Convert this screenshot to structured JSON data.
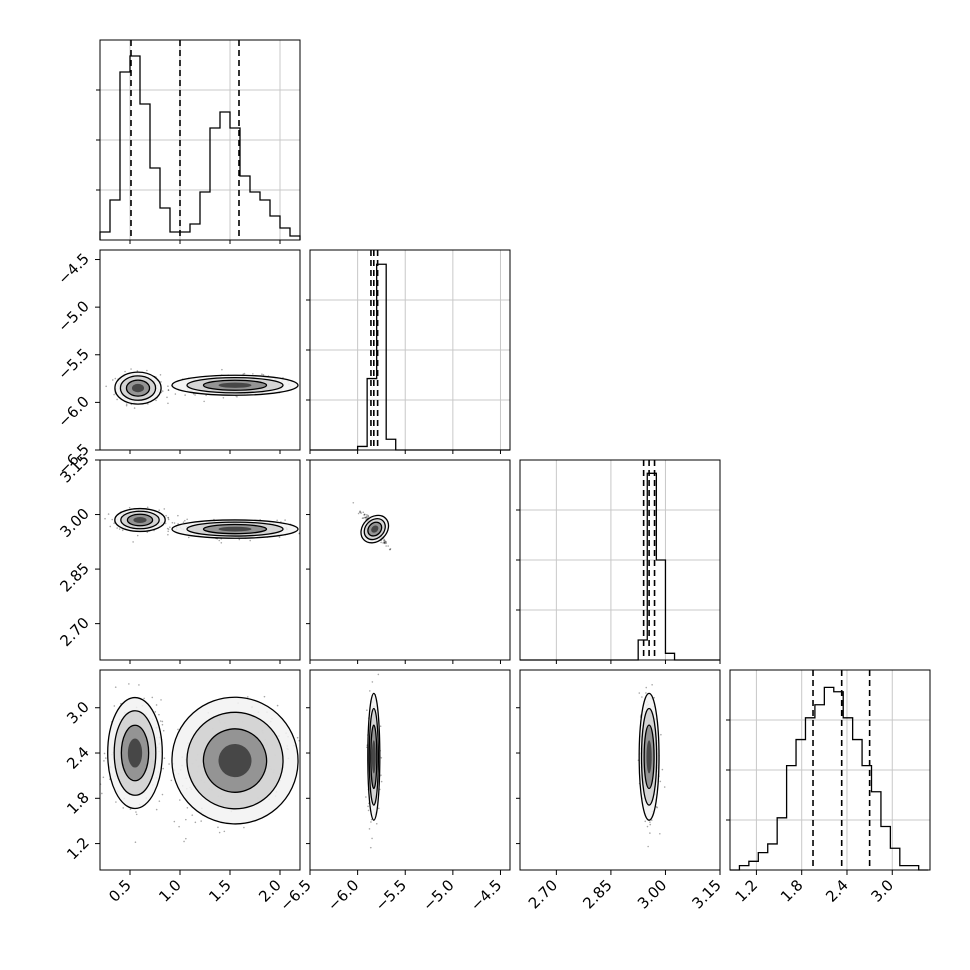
{
  "chart_data": {
    "type": "corner",
    "params": [
      {
        "id": "p0",
        "range": [
          0.2,
          2.2
        ],
        "ticks": [
          0.5,
          1.0,
          1.5,
          2.0
        ],
        "tick_labels": [
          "0.5",
          "1.0",
          "1.5",
          "2.0"
        ]
      },
      {
        "id": "p1",
        "range": [
          -6.5,
          -4.4
        ],
        "ticks": [
          -6.5,
          -6.0,
          -5.5,
          -5.0,
          -4.5
        ],
        "tick_labels": [
          "−6.5",
          "−6.0",
          "−5.5",
          "−5.0",
          "−4.5"
        ]
      },
      {
        "id": "p2",
        "range": [
          2.6,
          3.15
        ],
        "ticks": [
          2.7,
          2.85,
          3.0,
          3.15
        ],
        "tick_labels": [
          "2.70",
          "2.85",
          "3.00",
          "3.15"
        ]
      },
      {
        "id": "p3",
        "range": [
          0.85,
          3.5
        ],
        "ticks": [
          1.2,
          1.8,
          2.4,
          3.0
        ],
        "tick_labels": [
          "1.2",
          "1.8",
          "2.4",
          "3.0"
        ]
      }
    ],
    "histograms": [
      {
        "param": 0,
        "bins": [
          0.2,
          0.3,
          0.4,
          0.5,
          0.6,
          0.7,
          0.8,
          0.9,
          1.0,
          1.1,
          1.2,
          1.3,
          1.4,
          1.5,
          1.6,
          1.7,
          1.8,
          1.9,
          2.0,
          2.1,
          2.2
        ],
        "counts": [
          2,
          10,
          42,
          46,
          34,
          18,
          8,
          2,
          2,
          4,
          12,
          28,
          32,
          28,
          16,
          12,
          10,
          6,
          3,
          1
        ],
        "quantiles": [
          0.51,
          1.0,
          1.59
        ],
        "ymax": 50
      },
      {
        "param": 1,
        "bins": [
          -6.5,
          -6.4,
          -6.3,
          -6.2,
          -6.1,
          -6.0,
          -5.9,
          -5.8,
          -5.7,
          -5.6,
          -5.5,
          -5.4,
          -5.3,
          -5.2,
          -5.1,
          -5.0,
          -4.9,
          -4.8,
          -4.7,
          -4.6,
          -4.5,
          -4.4
        ],
        "counts": [
          0,
          0,
          0,
          0,
          0,
          1,
          20,
          52,
          3,
          0,
          0,
          0,
          0,
          0,
          0,
          0,
          0,
          0,
          0,
          0,
          0
        ],
        "quantiles": [
          -5.86,
          -5.83,
          -5.79
        ],
        "ymax": 56
      },
      {
        "param": 2,
        "bins": [
          2.6,
          2.625,
          2.65,
          2.675,
          2.7,
          2.725,
          2.75,
          2.775,
          2.8,
          2.825,
          2.85,
          2.875,
          2.9,
          2.925,
          2.95,
          2.975,
          3.0,
          3.025,
          3.05,
          3.075,
          3.1,
          3.125,
          3.15
        ],
        "counts": [
          0,
          0,
          0,
          0,
          0,
          0,
          0,
          0,
          0,
          0,
          0,
          0,
          0,
          6,
          56,
          30,
          2,
          0,
          0,
          0,
          0,
          0
        ],
        "quantiles": [
          2.94,
          2.955,
          2.97
        ],
        "ymax": 60
      },
      {
        "param": 3,
        "bins": [
          0.85,
          0.975,
          1.1,
          1.225,
          1.35,
          1.475,
          1.6,
          1.725,
          1.85,
          1.975,
          2.1,
          2.225,
          2.35,
          2.475,
          2.6,
          2.725,
          2.85,
          2.975,
          3.1,
          3.225,
          3.35,
          3.475
        ],
        "counts": [
          0,
          1,
          2,
          4,
          6,
          12,
          24,
          30,
          35,
          38,
          42,
          41,
          35,
          30,
          24,
          18,
          10,
          5,
          1,
          1,
          0
        ],
        "quantiles": [
          1.95,
          2.33,
          2.7
        ],
        "ymax": 46
      }
    ],
    "scatter_panels": [
      {
        "x": 0,
        "y": 1,
        "clusters": [
          {
            "cx": 0.58,
            "cy": -5.85,
            "sx": 0.11,
            "sy": 0.08
          },
          {
            "cx": 1.55,
            "cy": -5.82,
            "sx": 0.3,
            "sy": 0.05
          }
        ]
      },
      {
        "x": 0,
        "y": 2,
        "clusters": [
          {
            "cx": 0.6,
            "cy": 2.985,
            "sx": 0.12,
            "sy": 0.015
          },
          {
            "cx": 1.55,
            "cy": 2.96,
            "sx": 0.3,
            "sy": 0.012
          }
        ]
      },
      {
        "x": 1,
        "y": 2,
        "clusters": [
          {
            "cx": -5.82,
            "cy": 2.96,
            "sx": 0.06,
            "sy": 0.02,
            "rho": -0.95
          }
        ]
      },
      {
        "x": 0,
        "y": 3,
        "clusters": [
          {
            "cx": 0.55,
            "cy": 2.4,
            "sx": 0.13,
            "sy": 0.35
          },
          {
            "cx": 1.55,
            "cy": 2.3,
            "sx": 0.3,
            "sy": 0.4,
            "rho": 0.4
          }
        ]
      },
      {
        "x": 1,
        "y": 3,
        "clusters": [
          {
            "cx": -5.83,
            "cy": 2.35,
            "sx": 0.03,
            "sy": 0.4
          }
        ]
      },
      {
        "x": 2,
        "y": 3,
        "clusters": [
          {
            "cx": 2.955,
            "cy": 2.35,
            "sx": 0.013,
            "sy": 0.4
          }
        ]
      }
    ],
    "grid": true
  }
}
